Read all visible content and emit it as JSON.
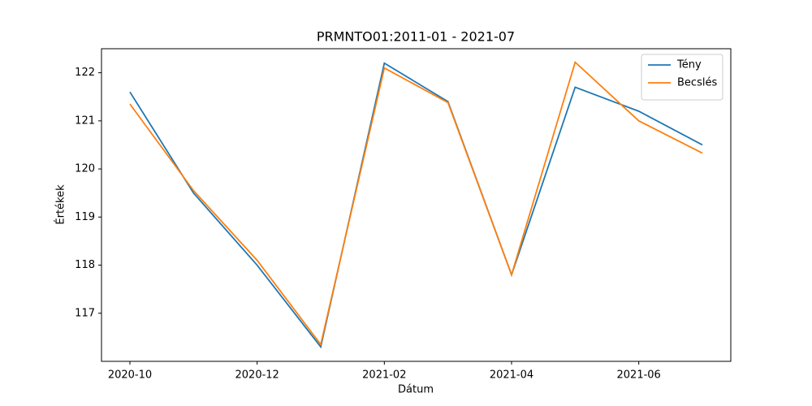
{
  "chart_data": {
    "type": "line",
    "title": "PRMNTO01:2011-01 - 2021-07",
    "xlabel": "Dátum",
    "ylabel": "Értékek",
    "categories": [
      "2020-10",
      null,
      "2020-12",
      null,
      "2021-02",
      null,
      "2021-04",
      null,
      "2021-06",
      null
    ],
    "series": [
      {
        "name": "Tény",
        "color": "#1f77b4",
        "values": [
          121.6,
          119.5,
          118.0,
          116.3,
          122.2,
          121.4,
          117.8,
          121.7,
          121.2,
          120.5
        ]
      },
      {
        "name": "Becslés",
        "color": "#ff7f0e",
        "values": [
          121.35,
          119.55,
          118.1,
          116.35,
          122.1,
          121.38,
          117.8,
          122.22,
          121.0,
          120.33
        ]
      }
    ],
    "ylim": [
      116.0,
      122.5
    ],
    "yticks": [
      117,
      118,
      119,
      120,
      121,
      122
    ],
    "legend": "upper right"
  }
}
